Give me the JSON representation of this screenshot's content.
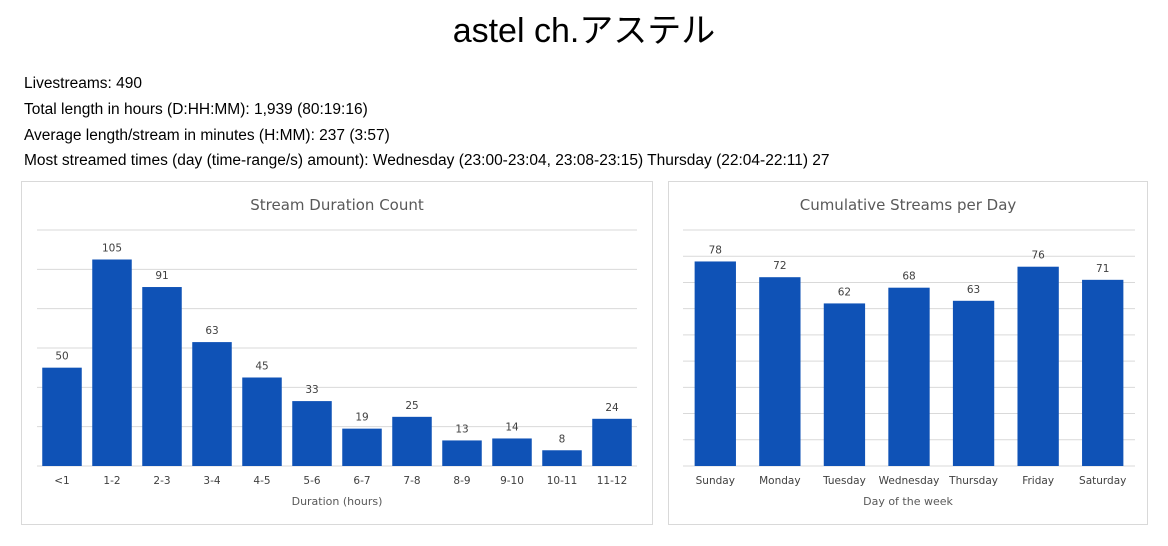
{
  "title": "astel ch.アステル",
  "stats": {
    "livestreams": "Livestreams: 490",
    "total_length": "Total length in hours (D:HH:MM): 1,939 (80:19:16)",
    "average_length": "Average length/stream in minutes (H:MM): 237 (3:57)",
    "most_streamed": "Most streamed times (day (time-range/s) amount): Wednesday (23:00-23:04, 23:08-23:15) Thursday (22:04-22:11) 27"
  },
  "colors": {
    "bar": "#0f52b6"
  },
  "chart_data": [
    {
      "type": "bar",
      "title": "Stream Duration Count",
      "xlabel": "Duration (hours)",
      "ylabel": "",
      "categories": [
        "<1",
        "1-2",
        "2-3",
        "3-4",
        "4-5",
        "5-6",
        "6-7",
        "7-8",
        "8-9",
        "9-10",
        "10-11",
        "11-12"
      ],
      "values": [
        50,
        105,
        91,
        63,
        45,
        33,
        19,
        25,
        13,
        14,
        8,
        24
      ],
      "ylim": [
        0,
        120
      ],
      "grid": true,
      "legend": "none"
    },
    {
      "type": "bar",
      "title": "Cumulative Streams per Day",
      "xlabel": "Day of the week",
      "ylabel": "",
      "categories": [
        "Sunday",
        "Monday",
        "Tuesday",
        "Wednesday",
        "Thursday",
        "Friday",
        "Saturday"
      ],
      "values": [
        78,
        72,
        62,
        68,
        63,
        76,
        71
      ],
      "ylim": [
        0,
        90
      ],
      "grid": true,
      "legend": "none"
    }
  ]
}
